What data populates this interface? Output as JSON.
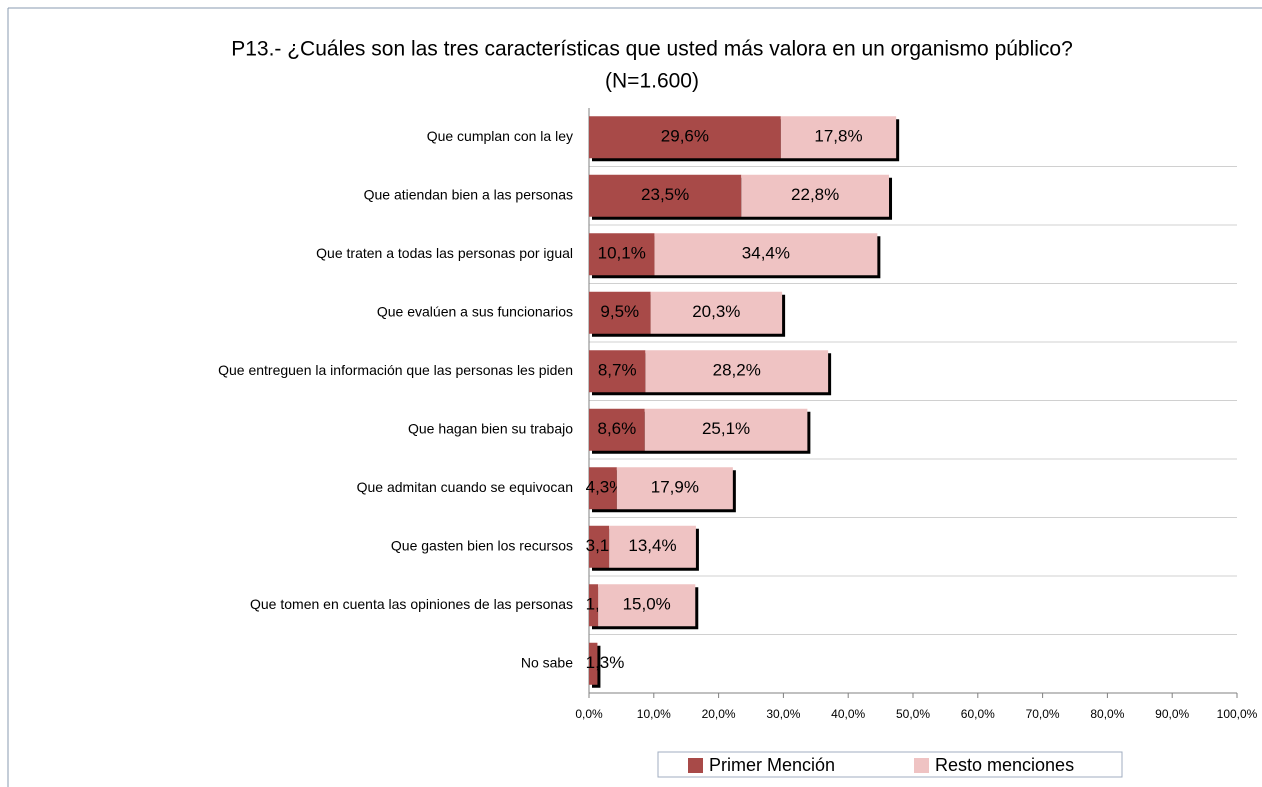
{
  "chart_data": {
    "type": "bar",
    "orientation": "horizontal",
    "stacked": true,
    "title": "P13.- ¿Cuáles son las tres características que usted más valora en un organismo  público?",
    "subtitle": "(N=1.600)",
    "categories": [
      "Que cumplan con la ley",
      "Que atiendan bien a las personas",
      "Que traten a todas las personas por igual",
      "Que evalúen a sus funcionarios",
      "Que entreguen la información que las personas les piden",
      "Que hagan bien su trabajo",
      "Que admitan cuando se equivocan",
      "Que gasten bien los recursos",
      "Que tomen en cuenta las opiniones de las personas",
      "No sabe"
    ],
    "series": [
      {
        "name": "Primer Mención",
        "color": "#a84a48",
        "values": [
          29.6,
          23.5,
          10.1,
          9.5,
          8.7,
          8.6,
          4.3,
          3.1,
          1.4,
          1.3
        ],
        "value_labels": [
          "29,6%",
          "23,5%",
          "10,1%",
          "9,5%",
          "8,7%",
          "8,6%",
          "4,3%",
          "3,1%",
          "1,4%",
          "1,3%"
        ]
      },
      {
        "name": "Resto menciones",
        "color": "#efc3c3",
        "values": [
          17.8,
          22.8,
          34.4,
          20.3,
          28.2,
          25.1,
          17.9,
          13.4,
          15.0,
          null
        ],
        "value_labels": [
          "17,8%",
          "22,8%",
          "34,4%",
          "20,3%",
          "28,2%",
          "25,1%",
          "17,9%",
          "13,4%",
          "15,0%",
          null
        ]
      }
    ],
    "xlim": [
      0,
      100
    ],
    "xticks": [
      {
        "value": 0,
        "label": "0,0%"
      },
      {
        "value": 10,
        "label": "10,0%"
      },
      {
        "value": 20,
        "label": "20,0%"
      },
      {
        "value": 30,
        "label": "30,0%"
      },
      {
        "value": 40,
        "label": "40,0%"
      },
      {
        "value": 50,
        "label": "50,0%"
      },
      {
        "value": 60,
        "label": "60,0%"
      },
      {
        "value": 70,
        "label": "70,0%"
      },
      {
        "value": 80,
        "label": "80,0%"
      },
      {
        "value": 90,
        "label": "90,0%"
      },
      {
        "value": 100,
        "label": "100,0%"
      }
    ],
    "legend": "bottom"
  }
}
